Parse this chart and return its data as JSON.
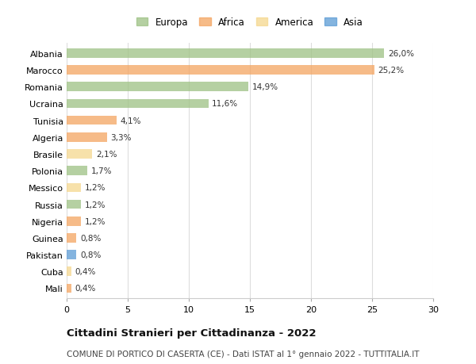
{
  "categories": [
    "Albania",
    "Marocco",
    "Romania",
    "Ucraina",
    "Tunisia",
    "Algeria",
    "Brasile",
    "Polonia",
    "Messico",
    "Russia",
    "Nigeria",
    "Guinea",
    "Pakistan",
    "Cuba",
    "Mali"
  ],
  "values": [
    26.0,
    25.2,
    14.9,
    11.6,
    4.1,
    3.3,
    2.1,
    1.7,
    1.2,
    1.2,
    1.2,
    0.8,
    0.8,
    0.4,
    0.4
  ],
  "labels": [
    "26,0%",
    "25,2%",
    "14,9%",
    "11,6%",
    "4,1%",
    "3,3%",
    "2,1%",
    "1,7%",
    "1,2%",
    "1,2%",
    "1,2%",
    "0,8%",
    "0,8%",
    "0,4%",
    "0,4%"
  ],
  "continents": [
    "Europa",
    "Africa",
    "Europa",
    "Europa",
    "Africa",
    "Africa",
    "America",
    "Europa",
    "America",
    "Europa",
    "Africa",
    "Africa",
    "Asia",
    "America",
    "Africa"
  ],
  "continent_colors": {
    "Europa": "#9DC183",
    "Africa": "#F4A460",
    "America": "#F5D78E",
    "Asia": "#5B9BD5"
  },
  "xlim": [
    0,
    30
  ],
  "xticks": [
    0,
    5,
    10,
    15,
    20,
    25,
    30
  ],
  "title": "Cittadini Stranieri per Cittadinanza - 2022",
  "subtitle": "COMUNE DI PORTICO DI CASERTA (CE) - Dati ISTAT al 1° gennaio 2022 - TUTTITALIA.IT",
  "background_color": "#ffffff",
  "grid_color": "#dddddd",
  "bar_alpha": 0.75,
  "bar_height": 0.55,
  "label_fontsize": 7.5,
  "tick_fontsize": 8.0,
  "legend_fontsize": 8.5,
  "title_fontsize": 9.5,
  "subtitle_fontsize": 7.5
}
